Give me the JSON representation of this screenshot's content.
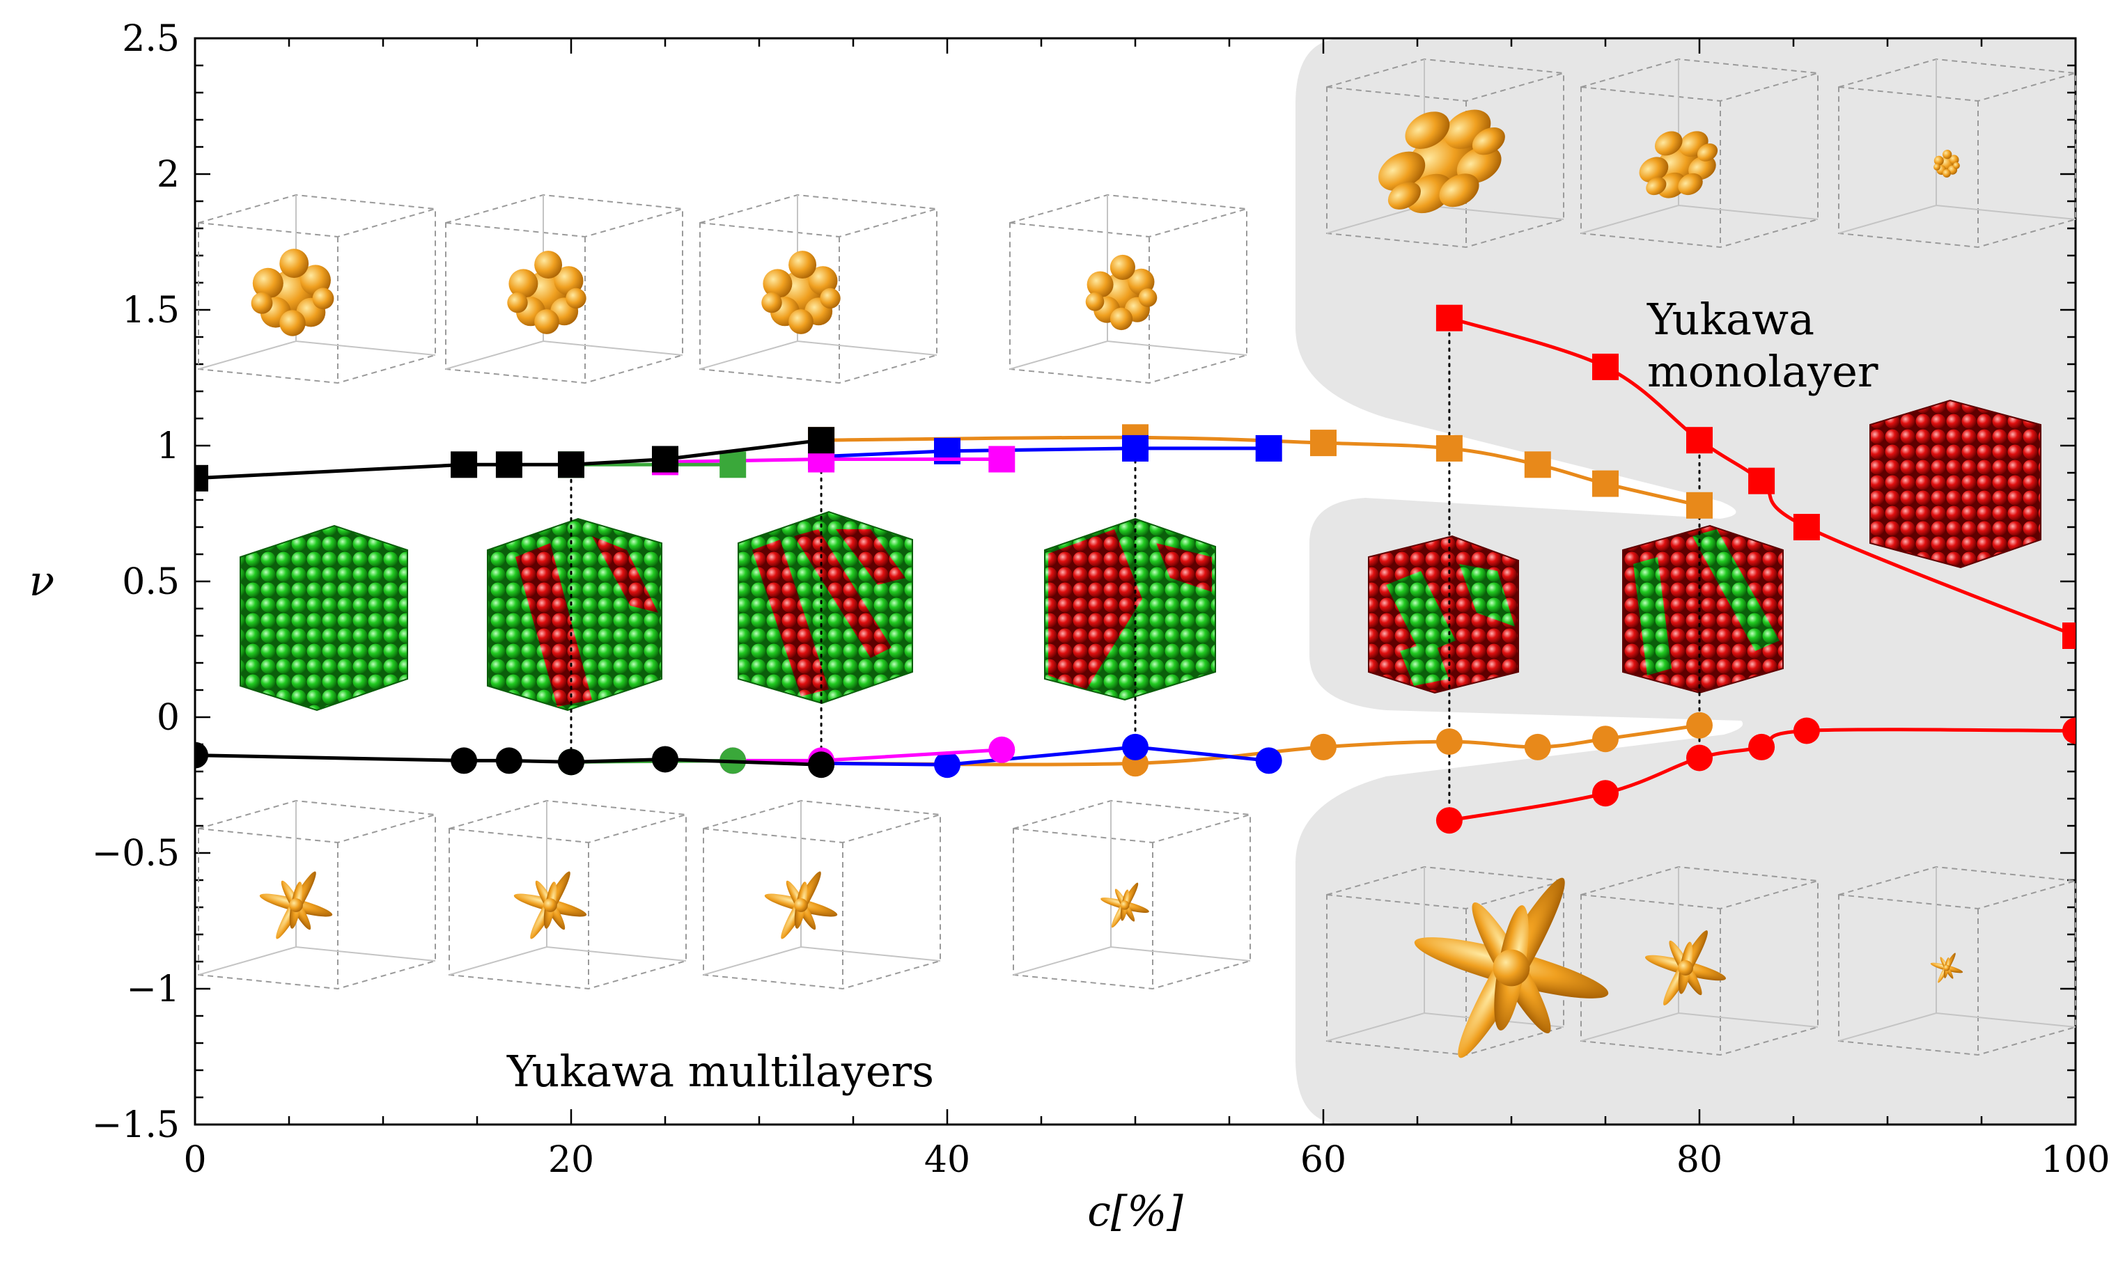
{
  "chart_data": {
    "type": "scatter",
    "xlabel": "c[%]",
    "ylabel": "ν",
    "xlim": [
      0,
      100
    ],
    "ylim": [
      -1.5,
      2.5
    ],
    "x_ticks": [
      "0",
      "20",
      "40",
      "60",
      "80",
      "100"
    ],
    "y_ticks": [
      "−1.5",
      "−1",
      "−0.5",
      "0",
      "0.5",
      "1",
      "1.5",
      "2",
      "2.5"
    ],
    "annotations": [
      "Yukawa monolayer",
      "Yukawa multilayers"
    ],
    "annotation_lines": [
      "Yukawa",
      "monolayer",
      "Yukawa multilayers"
    ],
    "colors": {
      "black": "#000000",
      "green": "#3aa83a",
      "magenta": "#ff00ff",
      "blue": "#0000ff",
      "orange": "#e8891a",
      "red": "#ff0000",
      "region": "#e6e6e6",
      "sphere_green": "#22cc22",
      "sphere_red": "#e01010",
      "lobe": "#f0a020"
    },
    "series": [
      {
        "name": "black-max",
        "color": "black",
        "marker": "square",
        "connect": true,
        "x": [
          0,
          14.3,
          16.7,
          20,
          25,
          33.3
        ],
        "y": [
          0.88,
          0.93,
          0.93,
          0.93,
          0.95,
          1.02
        ]
      },
      {
        "name": "green-max",
        "color": "green",
        "marker": "square",
        "connect": true,
        "x": [
          20,
          28.6
        ],
        "y": [
          0.93,
          0.93
        ]
      },
      {
        "name": "magenta-max",
        "color": "magenta",
        "marker": "square",
        "connect": true,
        "x": [
          25,
          33.3,
          42.9
        ],
        "y": [
          0.94,
          0.95,
          0.95
        ]
      },
      {
        "name": "blue-max",
        "color": "blue",
        "marker": "square",
        "connect": true,
        "x": [
          33.3,
          40,
          50,
          57.1
        ],
        "y": [
          0.96,
          0.98,
          0.99,
          0.99
        ]
      },
      {
        "name": "orange-max",
        "color": "orange",
        "marker": "square",
        "connect": true,
        "x": [
          33.3,
          50,
          60,
          66.7,
          71.4,
          75,
          80
        ],
        "y": [
          1.02,
          1.03,
          1.01,
          0.99,
          0.93,
          0.86,
          0.78
        ]
      },
      {
        "name": "red-max",
        "color": "red",
        "marker": "square",
        "connect": true,
        "x": [
          66.7,
          75,
          80,
          83.3,
          85.7,
          100
        ],
        "y": [
          1.47,
          1.29,
          1.02,
          0.87,
          0.7,
          0.3
        ]
      },
      {
        "name": "black-min",
        "color": "black",
        "marker": "circle",
        "connect": true,
        "x": [
          0,
          14.3,
          16.7,
          20,
          25,
          33.3
        ],
        "y": [
          -0.14,
          -0.16,
          -0.16,
          -0.165,
          -0.155,
          -0.175
        ]
      },
      {
        "name": "green-min",
        "color": "green",
        "marker": "circle",
        "connect": true,
        "x": [
          20,
          28.6
        ],
        "y": [
          -0.165,
          -0.16
        ]
      },
      {
        "name": "magenta-min",
        "color": "magenta",
        "marker": "circle",
        "connect": true,
        "x": [
          28.6,
          33.3,
          42.9
        ],
        "y": [
          -0.16,
          -0.16,
          -0.12
        ]
      },
      {
        "name": "blue-min",
        "color": "blue",
        "marker": "circle",
        "connect": true,
        "x": [
          33.3,
          40,
          50,
          57.1
        ],
        "y": [
          -0.17,
          -0.175,
          -0.11,
          -0.16
        ]
      },
      {
        "name": "orange-min",
        "color": "orange",
        "marker": "circle",
        "connect": true,
        "x": [
          33.3,
          50,
          60,
          66.7,
          71.4,
          75,
          80
        ],
        "y": [
          -0.17,
          -0.17,
          -0.11,
          -0.09,
          -0.11,
          -0.08,
          -0.03
        ]
      },
      {
        "name": "red-min",
        "color": "red",
        "marker": "circle",
        "connect": true,
        "x": [
          66.7,
          75,
          80,
          83.3,
          85.7,
          100
        ],
        "y": [
          -0.38,
          -0.28,
          -0.15,
          -0.11,
          -0.05,
          -0.05
        ]
      }
    ],
    "guides_x": [
      20,
      33.3,
      50,
      66.7,
      80
    ]
  }
}
